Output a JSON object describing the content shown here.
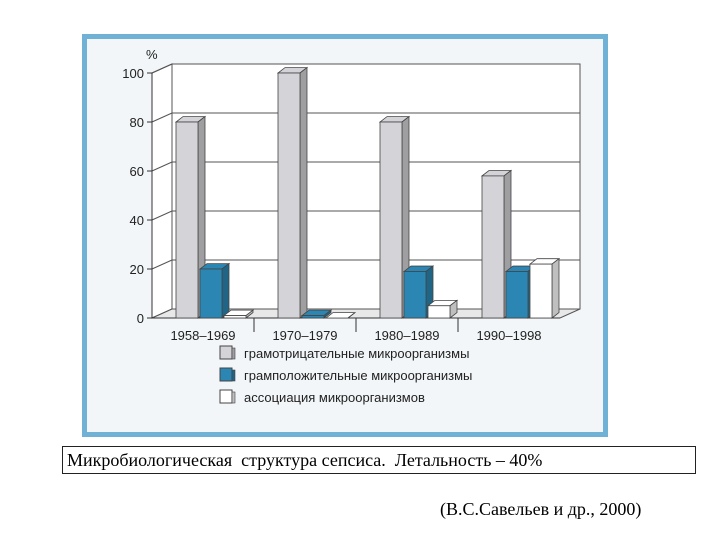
{
  "chart_data": {
    "type": "bar",
    "title": "",
    "xlabel": "",
    "ylabel": "%",
    "ylim": [
      0,
      100
    ],
    "yticks": [
      0,
      20,
      40,
      60,
      80,
      100
    ],
    "grid": true,
    "legend_position": "bottom",
    "categories": [
      "1958–1969",
      "1970–1979",
      "1980–1989",
      "1990–1998"
    ],
    "series": [
      {
        "name": "грамотрицательные микроорганизмы",
        "color": "#d4d4d8",
        "values": [
          80,
          100,
          80,
          58
        ]
      },
      {
        "name": "грамположительные микроорганизмы",
        "color": "#2c86b3",
        "values": [
          20,
          1,
          19,
          19
        ]
      },
      {
        "name": "ассоциация микроорганизмов",
        "color": "#ffffff",
        "values": [
          1,
          0,
          5,
          22
        ]
      }
    ]
  },
  "caption": "Микробиологическая  структура сепсиса.  Летальность – 40%",
  "source": "(В.С.Савельев и др., 2000)"
}
